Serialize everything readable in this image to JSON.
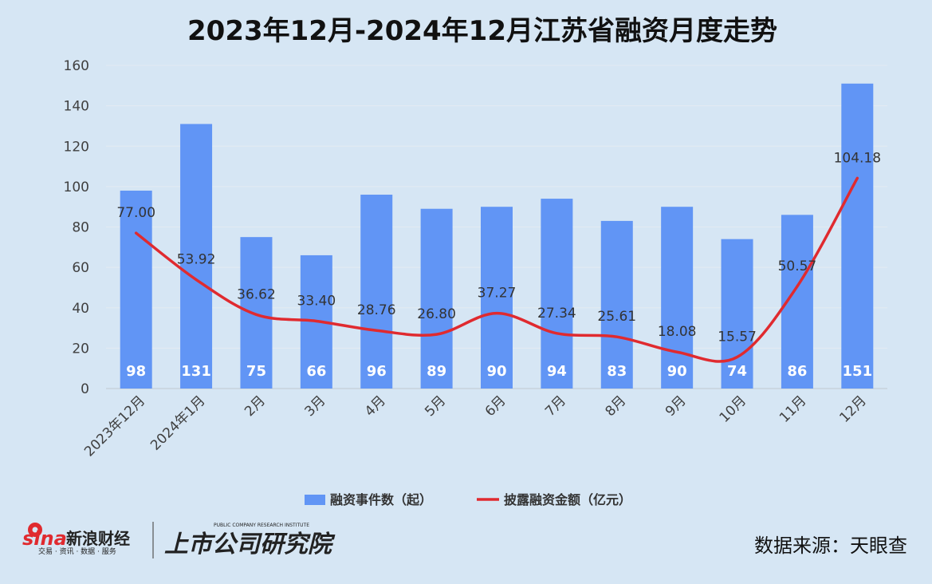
{
  "chart_data": {
    "type": "bar",
    "title": "2023年12月-2024年12月江苏省融资月度走势",
    "categories": [
      "2023年12月",
      "2024年1月",
      "2月",
      "3月",
      "4月",
      "5月",
      "6月",
      "7月",
      "8月",
      "9月",
      "10月",
      "11月",
      "12月"
    ],
    "ylim": [
      0,
      160
    ],
    "yticks": [
      0,
      20,
      40,
      60,
      80,
      100,
      120,
      140,
      160
    ],
    "grid": true,
    "legend_position": "bottom",
    "series": [
      {
        "name": "融资事件数（起）",
        "type": "bar",
        "color": "#6195f5",
        "values": [
          98,
          131,
          75,
          66,
          96,
          89,
          90,
          94,
          83,
          90,
          74,
          86,
          151
        ],
        "labels": [
          "98",
          "131",
          "75",
          "66",
          "96",
          "89",
          "90",
          "94",
          "83",
          "90",
          "74",
          "86",
          "151"
        ]
      },
      {
        "name": "披露融资金额（亿元）",
        "type": "line",
        "color": "#e02a2f",
        "values": [
          77.0,
          53.92,
          36.62,
          33.4,
          28.76,
          26.8,
          37.27,
          27.34,
          25.61,
          18.08,
          15.57,
          50.57,
          104.18
        ],
        "labels": [
          "77.00",
          "53.92",
          "36.62",
          "33.40",
          "28.76",
          "26.80",
          "37.27",
          "27.34",
          "25.61",
          "18.08",
          "15.57",
          "50.57",
          "104.18"
        ]
      }
    ]
  },
  "footer": {
    "source": "数据来源：天眼查",
    "logo_sina_wordmark": "sina",
    "logo_sina_cn": "新浪财经",
    "logo_sina_sub": "交易 · 资讯 · 数据 · 服务",
    "logo_research_cn": "上市公司研究院",
    "logo_research_en": "PUBLIC COMPANY RESEARCH INSTITUTE"
  }
}
